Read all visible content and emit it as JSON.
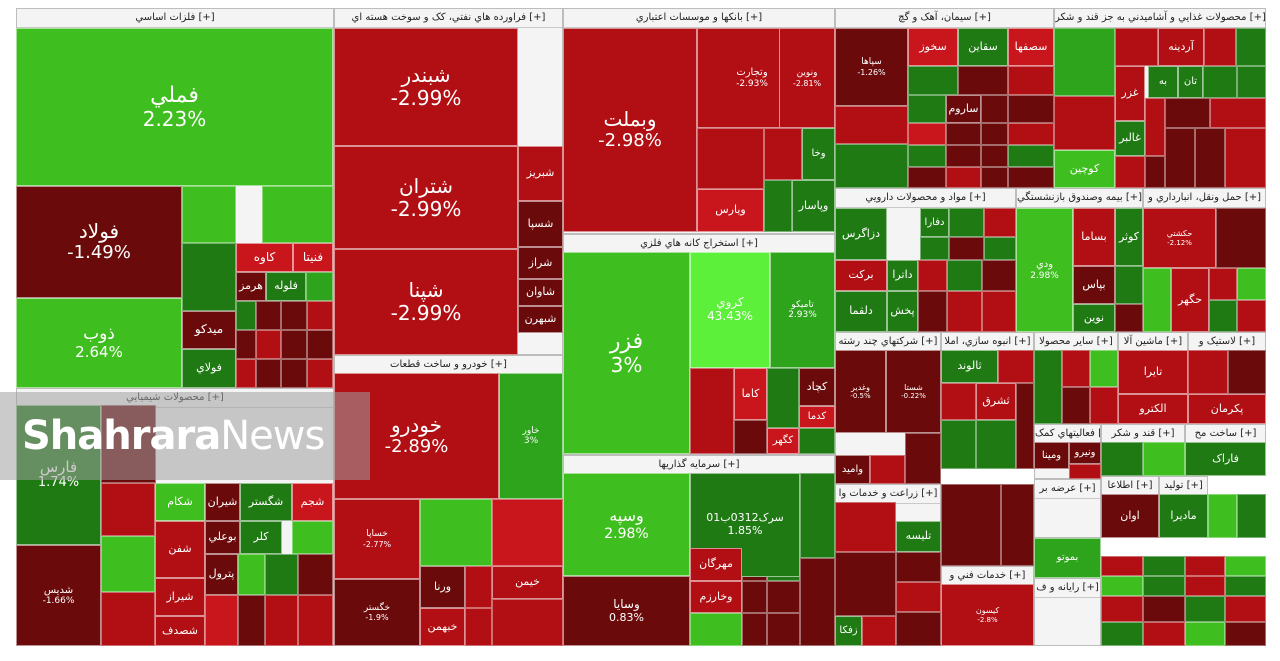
{
  "colors": {
    "up_strong": "#3fbf1f",
    "up": "#2ea31c",
    "up_dark": "#1f7a14",
    "down_dark": "#6a0a0a",
    "down": "#b10f14",
    "down_mid": "#c8161c",
    "up_bright": "#5cf03a"
  },
  "watermark": {
    "bold": "Shahrara",
    "light": "News"
  },
  "chart_data": {
    "type": "treemap",
    "title": "",
    "sectors": [
      {
        "name": "فلزات اساسي [+]",
        "stocks": [
          {
            "symbol": "فملي",
            "change": "2.23%"
          },
          {
            "symbol": "فولاد",
            "change": "-1.49%"
          },
          {
            "symbol": "ذوب",
            "change": "2.64%"
          },
          {
            "symbol": "کاوه",
            "change": ""
          },
          {
            "symbol": "فنيتا",
            "change": ""
          },
          {
            "symbol": "هرمز",
            "change": ""
          },
          {
            "symbol": "فلوله",
            "change": ""
          },
          {
            "symbol": "ميدکو",
            "change": ""
          },
          {
            "symbol": "فولاي",
            "change": ""
          }
        ]
      },
      {
        "name": "فراورده هاي نفتي، کک و سوخت هسته اي [+]",
        "stocks": [
          {
            "symbol": "شبندر",
            "change": "-2.99%"
          },
          {
            "symbol": "شتران",
            "change": "-2.99%"
          },
          {
            "symbol": "شپنا",
            "change": "-2.99%"
          },
          {
            "symbol": "شبريز",
            "change": ""
          },
          {
            "symbol": "شسپا",
            "change": ""
          },
          {
            "symbol": "شراز",
            "change": ""
          },
          {
            "symbol": "شاوان",
            "change": ""
          },
          {
            "symbol": "شبهرن",
            "change": ""
          }
        ]
      },
      {
        "name": "بانکها و موسسات اعتباري [+]",
        "stocks": [
          {
            "symbol": "وبملت",
            "change": "-2.98%"
          },
          {
            "symbol": "وتجارت",
            "change": "-2.93%"
          },
          {
            "symbol": "ونوين",
            "change": "-2.81%"
          },
          {
            "symbol": "ويارس",
            "change": ""
          },
          {
            "symbol": "وپاسار",
            "change": ""
          },
          {
            "symbol": "وخا",
            "change": ""
          }
        ]
      },
      {
        "name": "سيمان، آهک و گچ [+]",
        "stocks": [
          {
            "symbol": "سپاها",
            "change": "-1.26%"
          },
          {
            "symbol": "سخوز",
            "change": ""
          },
          {
            "symbol": "سقاين",
            "change": ""
          },
          {
            "symbol": "سصفها",
            "change": ""
          },
          {
            "symbol": "ساروم",
            "change": ""
          }
        ]
      },
      {
        "name": "محصولات غذايي و آشاميدني به جز قند و شکر [+]",
        "stocks": [
          {
            "symbol": "آردينه",
            "change": ""
          },
          {
            "symbol": "غزر",
            "change": ""
          },
          {
            "symbol": "غالبر",
            "change": ""
          },
          {
            "symbol": "کوچين",
            "change": ""
          },
          {
            "symbol": "تان",
            "change": ""
          },
          {
            "symbol": "به",
            "change": ""
          }
        ]
      },
      {
        "name": "استخراج کانه هاي فلزي [+]",
        "stocks": [
          {
            "symbol": "فزر",
            "change": "3%"
          },
          {
            "symbol": "کروي",
            "change": "43.43%"
          },
          {
            "symbol": "تاميکو",
            "change": "2.93%"
          },
          {
            "symbol": "کچاد",
            "change": ""
          },
          {
            "symbol": "کاما",
            "change": ""
          },
          {
            "symbol": "کدما",
            "change": ""
          },
          {
            "symbol": "کگهر",
            "change": ""
          }
        ]
      },
      {
        "name": "خودرو و ساخت قطعات [+]",
        "stocks": [
          {
            "symbol": "خودرو",
            "change": "-2.89%"
          },
          {
            "symbol": "خاور",
            "change": "3%"
          },
          {
            "symbol": "خساپا",
            "change": "-2.77%"
          },
          {
            "symbol": "خگستر",
            "change": "-1.9%"
          },
          {
            "symbol": "ورنا",
            "change": ""
          },
          {
            "symbol": "خيمن",
            "change": ""
          },
          {
            "symbol": "خبهمن",
            "change": ""
          }
        ]
      },
      {
        "name": "محصولات شيميايي [+]",
        "stocks": [
          {
            "symbol": "فارس",
            "change": "1.74%"
          },
          {
            "symbol": "شديس",
            "change": "-1.66%"
          },
          {
            "symbol": "شکام",
            "change": ""
          },
          {
            "symbol": "شيران",
            "change": ""
          },
          {
            "symbol": "شگستر",
            "change": ""
          },
          {
            "symbol": "شجم",
            "change": ""
          },
          {
            "symbol": "بوعلي",
            "change": ""
          },
          {
            "symbol": "کلر",
            "change": ""
          },
          {
            "symbol": "شفن",
            "change": ""
          },
          {
            "symbol": "پترول",
            "change": ""
          },
          {
            "symbol": "شيراز",
            "change": ""
          },
          {
            "symbol": "شصدف",
            "change": ""
          }
        ]
      },
      {
        "name": "سرمايه گذاريها [+]",
        "stocks": [
          {
            "symbol": "وسپه",
            "change": "2.98%"
          },
          {
            "symbol": "سرک0312ب01",
            "change": "1.85%"
          },
          {
            "symbol": "وسايا",
            "change": "0.83%"
          },
          {
            "symbol": "مهرگان",
            "change": ""
          },
          {
            "symbol": "وخارزم",
            "change": ""
          }
        ]
      },
      {
        "name": "مواد و محصولات دارويي [+]",
        "stocks": [
          {
            "symbol": "دزاگرس",
            "change": ""
          },
          {
            "symbol": "برکت",
            "change": ""
          },
          {
            "symbol": "دلقما",
            "change": ""
          },
          {
            "symbol": "داترا",
            "change": ""
          },
          {
            "symbol": "دفارا",
            "change": ""
          },
          {
            "symbol": "پخش",
            "change": ""
          }
        ]
      },
      {
        "name": "بيمه وصندوق بازنشستگي [+]",
        "stocks": [
          {
            "symbol": "ودي",
            "change": "2.98%"
          },
          {
            "symbol": "بساما",
            "change": ""
          },
          {
            "symbol": "کوثر",
            "change": ""
          },
          {
            "symbol": "بپاس",
            "change": ""
          },
          {
            "symbol": "نوين",
            "change": ""
          }
        ]
      },
      {
        "name": "حمل ونقل، انبارداري و [+]",
        "stocks": [
          {
            "symbol": "حکشتي",
            "change": "-2.12%"
          },
          {
            "symbol": "حگهر",
            "change": ""
          }
        ]
      },
      {
        "name": "شرکتهاي چند رشته [+]",
        "stocks": [
          {
            "symbol": "وغدير",
            "change": "-0.5%"
          },
          {
            "symbol": "شستا",
            "change": "-0.22%"
          },
          {
            "symbol": "واميد",
            "change": ""
          }
        ]
      },
      {
        "name": "انبوه سازي، املا [+]",
        "stocks": [
          {
            "symbol": "ثالوند",
            "change": ""
          },
          {
            "symbol": "ثشرق",
            "change": ""
          }
        ]
      },
      {
        "name": "ساير محصولا [+]",
        "stocks": []
      },
      {
        "name": "ماشين آلا [+]",
        "stocks": [
          {
            "symbol": "تايرا",
            "change": ""
          },
          {
            "symbol": "الکترو",
            "change": ""
          }
        ]
      },
      {
        "name": "لاستيک و [+]",
        "stocks": [
          {
            "symbol": "پکرمان",
            "change": ""
          }
        ]
      },
      {
        "name": "زراعت و خدمات وا [+]",
        "stocks": [
          {
            "symbol": "تليسه",
            "change": ""
          },
          {
            "symbol": "زفکا",
            "change": ""
          }
        ]
      },
      {
        "name": "فعاليتهاي کمک [+]",
        "stocks": [
          {
            "symbol": "ونيرو",
            "change": ""
          }
        ]
      },
      {
        "name": "خدمات فني و [+]",
        "stocks": [
          {
            "symbol": "کيسون",
            "change": "-2.8%"
          }
        ]
      },
      {
        "name": "قند و شکر [+]",
        "stocks": []
      },
      {
        "name": "ساخت مح [+]",
        "stocks": [
          {
            "symbol": "فاراک",
            "change": ""
          }
        ]
      },
      {
        "name": "عرضه بر [+]",
        "stocks": [
          {
            "symbol": "ومينا",
            "change": ""
          }
        ]
      },
      {
        "name": "اطلاعا [+]",
        "stocks": [
          {
            "symbol": "اوان",
            "change": ""
          }
        ]
      },
      {
        "name": "توليد [+]",
        "stocks": [
          {
            "symbol": "مادیرا",
            "change": ""
          }
        ]
      },
      {
        "name": "ماشين آلا [+]",
        "stocks": [
          {
            "symbol": "بموتو",
            "change": ""
          }
        ]
      },
      {
        "name": "رايانه و ف [+]",
        "stocks": []
      }
    ]
  }
}
